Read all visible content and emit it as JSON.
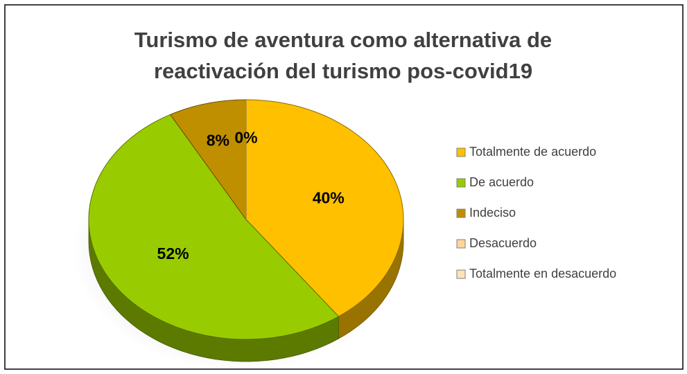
{
  "chart_data": {
    "type": "pie",
    "title": "Turismo de aventura como alternativa de reactivación del turismo pos-covid19",
    "categories": [
      "Totalmente de acuerdo",
      "De acuerdo",
      "Indeciso",
      "Desacuerdo",
      "Totalmente en desacuerdo"
    ],
    "values": [
      40,
      52,
      8,
      0,
      0
    ],
    "value_labels": [
      "40%",
      "52%",
      "8%",
      "0%",
      null
    ],
    "colors": [
      "#ffc000",
      "#99cc00",
      "#bf8f00",
      "#ffd699",
      "#ffe3b8"
    ],
    "legend": "right"
  }
}
